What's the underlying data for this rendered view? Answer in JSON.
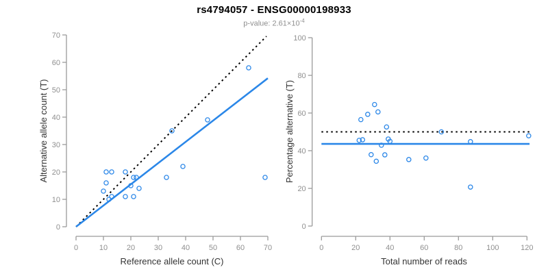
{
  "header": {
    "title": "rs4794057 - ENSG00000198933",
    "subtitle_prefix": "p-value: ",
    "subtitle_value": "2.61×10",
    "subtitle_exponent": "-4"
  },
  "colors": {
    "point": "#2b87e8",
    "fit_line": "#2b87e8",
    "dotted_line": "#000000",
    "axis_line": "#9a9a9a",
    "tick_label": "#8f8f8f",
    "axis_title": "#333333",
    "subtitle": "#8f8f8f"
  },
  "chart_data": [
    {
      "type": "scatter",
      "name": "allele-counts",
      "xlabel": "Reference allele count (C)",
      "ylabel": "Alternative allele count (T)",
      "xlim": [
        0,
        70
      ],
      "ylim": [
        0,
        70
      ],
      "xticks": [
        0,
        10,
        20,
        30,
        40,
        50,
        60,
        70
      ],
      "yticks": [
        0,
        10,
        20,
        30,
        40,
        50,
        60,
        70
      ],
      "grid": false,
      "legend": false,
      "points": [
        [
          12,
          10
        ],
        [
          13,
          11
        ],
        [
          10,
          13
        ],
        [
          11,
          16
        ],
        [
          11,
          20
        ],
        [
          13,
          20
        ],
        [
          18,
          20
        ],
        [
          18,
          11
        ],
        [
          21,
          11
        ],
        [
          20,
          15
        ],
        [
          23,
          14
        ],
        [
          21,
          18
        ],
        [
          22,
          18
        ],
        [
          33,
          18
        ],
        [
          39,
          22
        ],
        [
          35,
          35
        ],
        [
          48,
          39
        ],
        [
          63,
          58
        ],
        [
          69,
          18
        ]
      ],
      "lines": [
        {
          "name": "identity-line",
          "style": "dotted",
          "color": "#000000",
          "x1": 0,
          "y1": 0,
          "x2": 69.5,
          "y2": 69.5
        },
        {
          "name": "fit-line",
          "style": "solid",
          "color": "#2b87e8",
          "x1": 0,
          "y1": 0,
          "x2": 70,
          "y2": 54.2
        }
      ]
    },
    {
      "type": "scatter",
      "name": "percentage-vs-coverage",
      "xlabel": "Total number of reads",
      "ylabel": "Percentage alternative (T)",
      "xlim": [
        0,
        121.5
      ],
      "ylim": [
        0,
        100
      ],
      "xticks": [
        0,
        20,
        40,
        60,
        80,
        100,
        120
      ],
      "yticks": [
        0,
        20,
        40,
        60,
        80,
        100
      ],
      "grid": false,
      "legend": false,
      "points": [
        [
          22,
          45.5
        ],
        [
          24,
          45.8
        ],
        [
          23,
          56.5
        ],
        [
          27,
          59.3
        ],
        [
          31,
          64.5
        ],
        [
          33,
          60.6
        ],
        [
          38,
          52.6
        ],
        [
          29,
          37.9
        ],
        [
          32,
          34.4
        ],
        [
          35,
          42.9
        ],
        [
          37,
          37.8
        ],
        [
          39,
          46.2
        ],
        [
          40,
          45.0
        ],
        [
          51,
          35.3
        ],
        [
          61,
          36.1
        ],
        [
          70,
          50.0
        ],
        [
          87,
          44.8
        ],
        [
          121,
          47.9
        ],
        [
          87,
          20.7
        ]
      ],
      "lines": [
        {
          "name": "null-50pct-line",
          "style": "dotted",
          "color": "#000000",
          "x1": 0,
          "y1": 50,
          "x2": 121.5,
          "y2": 50
        },
        {
          "name": "mean-pct-line",
          "style": "solid",
          "color": "#2b87e8",
          "x1": 0,
          "y1": 43.6,
          "x2": 121.5,
          "y2": 43.6
        }
      ]
    }
  ]
}
